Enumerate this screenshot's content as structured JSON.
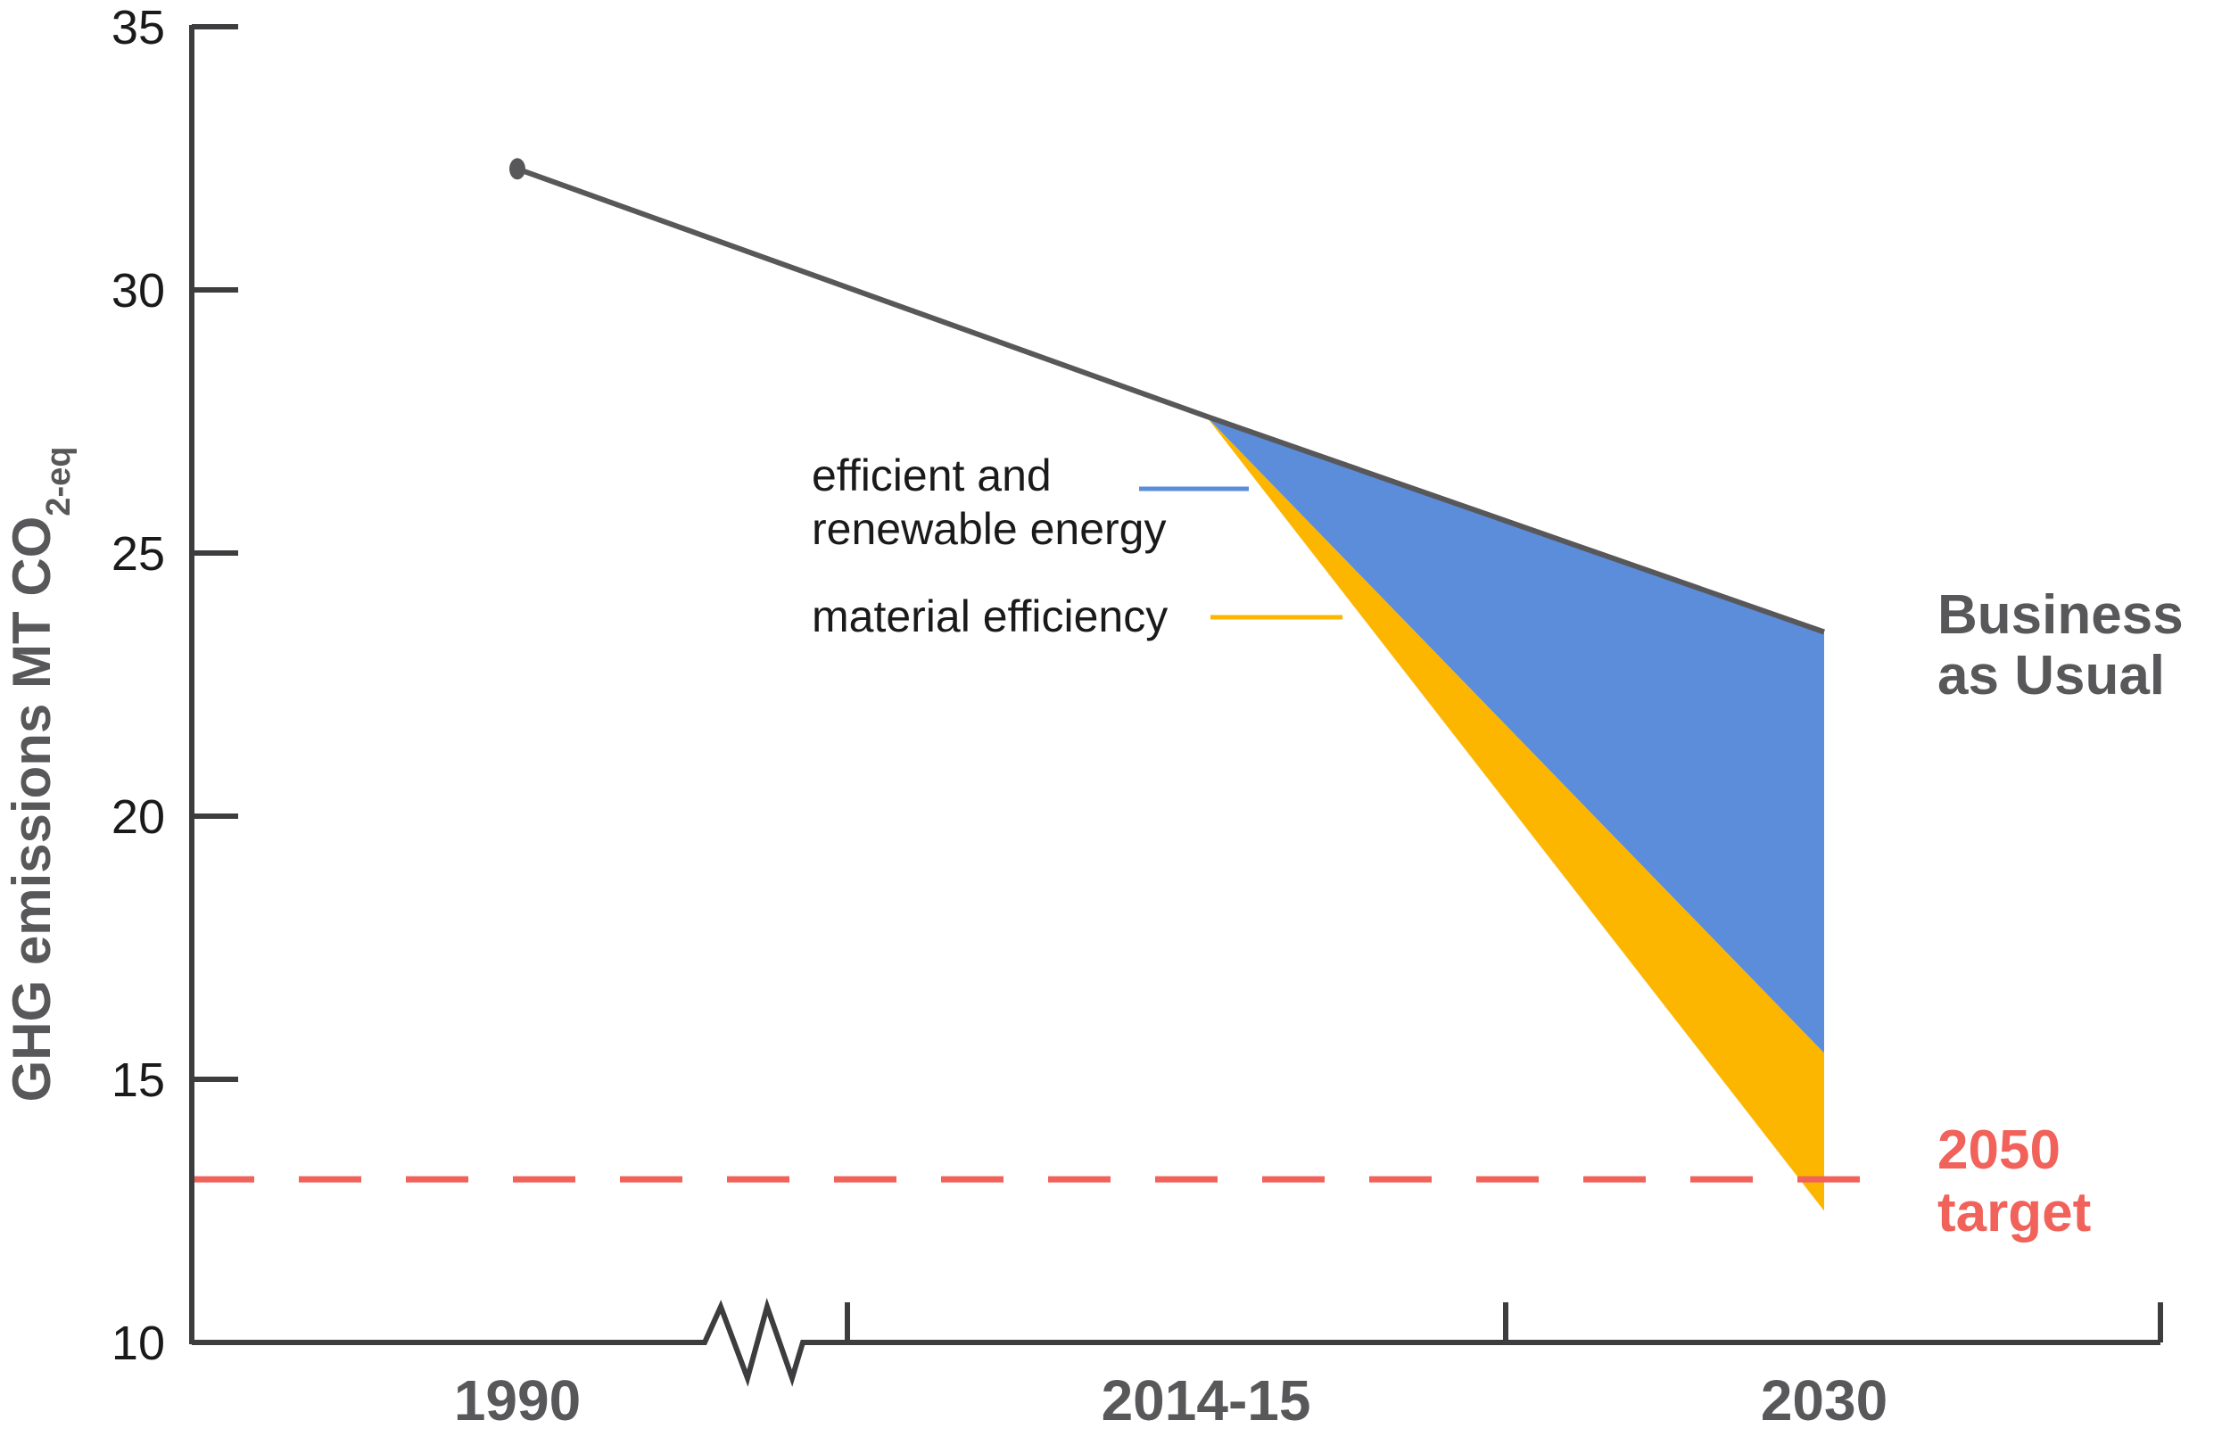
{
  "colors": {
    "axis": "#3d3d3f",
    "bau_line": "#58585a",
    "renewable": "#5b8ddb",
    "material": "#fdb600",
    "target": "#f0625a",
    "label_gray": "#58585a"
  },
  "chart_data": {
    "type": "area",
    "title": "",
    "ylabel": "GHG emissions MT CO",
    "ylabel_subscript": "2-eq",
    "ylim": [
      10,
      35
    ],
    "yticks": [
      10,
      15,
      20,
      25,
      30,
      35
    ],
    "categories": [
      "1990",
      "2014-15",
      "2030"
    ],
    "axis_break_between": [
      "1990",
      "2014-15"
    ],
    "series": [
      {
        "name": "Business as Usual",
        "label_lines": [
          "Business",
          "as Usual"
        ],
        "kind": "line",
        "values": [
          32.3,
          27.6,
          23.5
        ]
      },
      {
        "name": "efficient and renewable energy",
        "label_lines": [
          "efficient and",
          "renewable energy"
        ],
        "kind": "band",
        "upper": [
          null,
          27.6,
          23.5
        ],
        "lower": [
          null,
          27.6,
          15.5
        ]
      },
      {
        "name": "material efficiency",
        "label_lines": [
          "material efficiency"
        ],
        "kind": "band",
        "upper": [
          null,
          27.6,
          15.5
        ],
        "lower": [
          null,
          27.6,
          12.5
        ]
      }
    ],
    "reference_lines": [
      {
        "name": "2050 target",
        "label_lines": [
          "2050",
          "target"
        ],
        "value": 13.1,
        "style": "dashed"
      }
    ],
    "legend_position": "inline-center",
    "grid": false
  }
}
